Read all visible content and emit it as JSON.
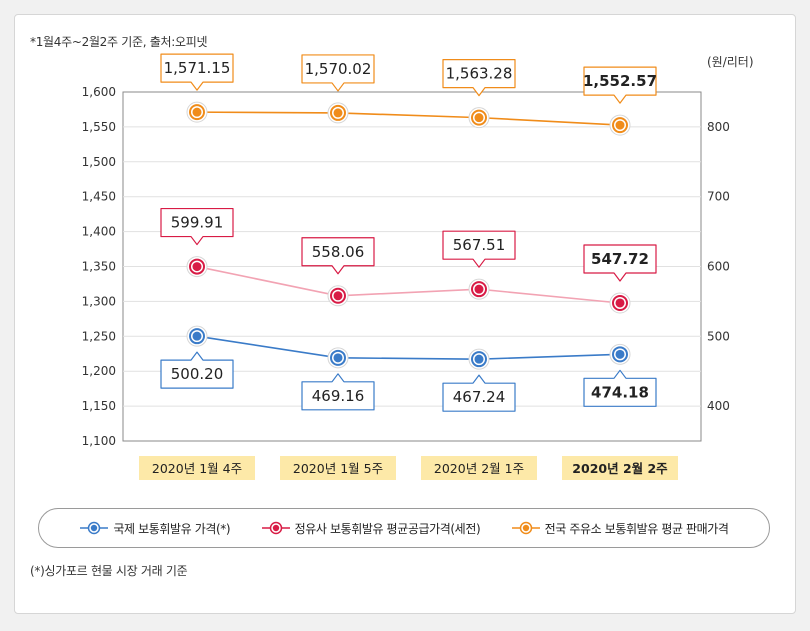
{
  "chart_data": {
    "type": "line",
    "source_note": "*1월4주~2월2주 기준, 출처:오피넷",
    "footnote": "(*)싱가포르 현물 시장 거래 기준",
    "categories": [
      "2020년 1월 4주",
      "2020년 1월 5주",
      "2020년 2월 1주",
      "2020년 2월 2주"
    ],
    "highlight_category_index": 3,
    "left_axis": {
      "min": 1100,
      "max": 1600,
      "ticks": [
        "1,100",
        "1,150",
        "1,200",
        "1,250",
        "1,300",
        "1,350",
        "1,400",
        "1,450",
        "1,500",
        "1,550",
        "1,600"
      ]
    },
    "right_axis": {
      "label": "(원/리터)",
      "min": 350,
      "max": 850,
      "ticks": [
        "400",
        "500",
        "600",
        "700",
        "800"
      ]
    },
    "series": [
      {
        "name": "국제 보통휘발유 가격(*)",
        "axis": "right",
        "color": "#3a7bc8",
        "line_color": "#3a7bc8",
        "label_position": "below",
        "values": [
          500.2,
          469.16,
          467.24,
          474.18
        ],
        "labels": [
          "500.20",
          "469.16",
          "467.24",
          "474.18"
        ]
      },
      {
        "name": "정유사 보통휘발유 평균공급가격(세전)",
        "axis": "right",
        "color": "#d81b45",
        "line_color": "#f2a3b3",
        "label_position": "above",
        "values": [
          599.91,
          558.06,
          567.51,
          547.72
        ],
        "labels": [
          "599.91",
          "558.06",
          "567.51",
          "547.72"
        ]
      },
      {
        "name": "전국 주유소 보통휘발유 평균 판매가격",
        "axis": "left",
        "color": "#f08c1a",
        "line_color": "#f08c1a",
        "label_position": "above",
        "values": [
          1571.15,
          1570.02,
          1563.28,
          1552.57
        ],
        "labels": [
          "1,571.15",
          "1,570.02",
          "1,563.28",
          "1,552.57"
        ]
      }
    ]
  }
}
